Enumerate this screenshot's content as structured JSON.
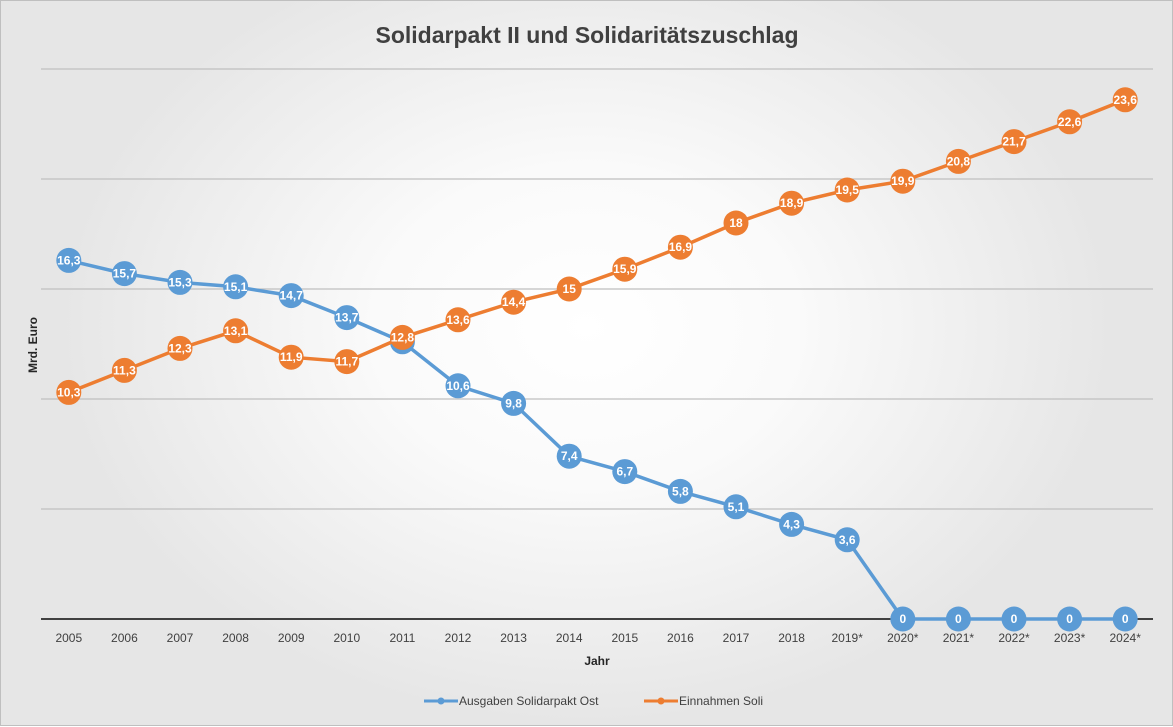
{
  "chart_data": {
    "type": "line",
    "title": "Solidarpakt II und Solidaritätszuschlag",
    "xlabel": "Jahr",
    "ylabel": "Mrd. Euro",
    "ylim": [
      0,
      25
    ],
    "grid": true,
    "legend": "bottom",
    "categories": [
      "2005",
      "2006",
      "2007",
      "2008",
      "2009",
      "2010",
      "2011",
      "2012",
      "2013",
      "2014",
      "2015",
      "2016",
      "2017",
      "2018",
      "2019*",
      "2020*",
      "2021*",
      "2022*",
      "2023*",
      "2024*"
    ],
    "series": [
      {
        "name": "Ausgaben Solidarpakt Ost",
        "color": "#5b9bd5",
        "values": [
          16.3,
          15.7,
          15.3,
          15.1,
          14.7,
          13.7,
          12.6,
          10.6,
          9.8,
          7.4,
          6.7,
          5.8,
          5.1,
          4.3,
          3.6,
          0,
          0,
          0,
          0,
          0
        ],
        "labels": [
          "16,3",
          "15,7",
          "15,3",
          "15,1",
          "14,7",
          "13,7",
          "",
          "10,6",
          "9,8",
          "7,4",
          "6,7",
          "5,8",
          "5,1",
          "4,3",
          "3,6",
          "0",
          "0",
          "0",
          "0",
          "0"
        ]
      },
      {
        "name": "Einnahmen Soli",
        "color": "#ed7d31",
        "values": [
          10.3,
          11.3,
          12.3,
          13.1,
          11.9,
          11.7,
          12.8,
          13.6,
          14.4,
          15,
          15.9,
          16.9,
          18,
          18.9,
          19.5,
          19.9,
          20.8,
          21.7,
          22.6,
          23.6
        ],
        "labels": [
          "10,3",
          "11,3",
          "12,3",
          "13,1",
          "11,9",
          "11,7",
          "12,8",
          "13,6",
          "14,4",
          "15",
          "15,9",
          "16,9",
          "18",
          "18,9",
          "19,5",
          "19,9",
          "20,8",
          "21,7",
          "22,6",
          "23,6"
        ]
      }
    ]
  }
}
